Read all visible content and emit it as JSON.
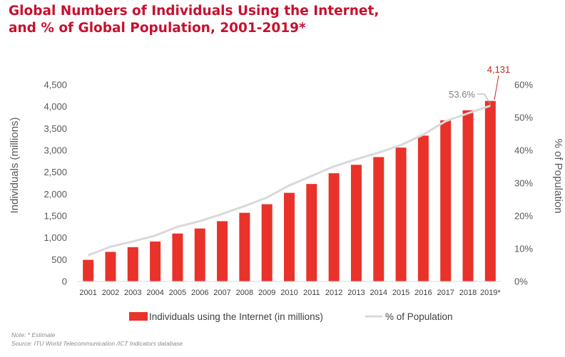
{
  "title_line1": "Global Numbers of Individuals Using the Internet,",
  "title_line2": "and % of Global Population, 2001-2019*",
  "note": "Note: * Estimate",
  "source": "Source:  ITU World Telecommunication /ICT Indicators database",
  "colors": {
    "bar": "#e8322a",
    "line": "#d9d9d9",
    "title": "#c8102e",
    "label_red": "#c0281e",
    "label_gray": "#7f7f7f"
  },
  "chart_data": {
    "type": "bar",
    "categories": [
      "2001",
      "2002",
      "2003",
      "2004",
      "2005",
      "2006",
      "2007",
      "2008",
      "2009",
      "2010",
      "2011",
      "2012",
      "2013",
      "2014",
      "2015",
      "2016",
      "2017",
      "2018",
      "2019*"
    ],
    "series": [
      {
        "name": "Individuals using the Internet (in millions)",
        "type": "bar",
        "axis": "left",
        "values": [
          495,
          677,
          785,
          914,
          1097,
          1212,
          1379,
          1571,
          1767,
          2028,
          2231,
          2476,
          2670,
          2846,
          3063,
          3337,
          3688,
          3917,
          4131
        ]
      },
      {
        "name": "% of Population",
        "type": "line",
        "axis": "right",
        "values": [
          8.0,
          10.6,
          12.2,
          14.0,
          16.7,
          18.4,
          20.6,
          23.0,
          25.6,
          29.3,
          32.2,
          35.1,
          37.3,
          39.3,
          41.6,
          44.8,
          48.9,
          51.3,
          53.6
        ]
      }
    ],
    "ylabel": "Individuals (millions)",
    "y2label": "% of Population",
    "ylim": [
      0,
      4500
    ],
    "y2lim": [
      0,
      60
    ],
    "yticks": [
      "0",
      "500",
      "1,000",
      "1,500",
      "2,000",
      "2,500",
      "3,000",
      "3,500",
      "4,000",
      "4,500"
    ],
    "y2ticks": [
      "0%",
      "10%",
      "20%",
      "30%",
      "40%",
      "50%",
      "60%"
    ],
    "annotations": {
      "last_bar_label": "4,131",
      "last_point_label": "53.6%"
    },
    "legend_position": "bottom",
    "grid": false
  }
}
